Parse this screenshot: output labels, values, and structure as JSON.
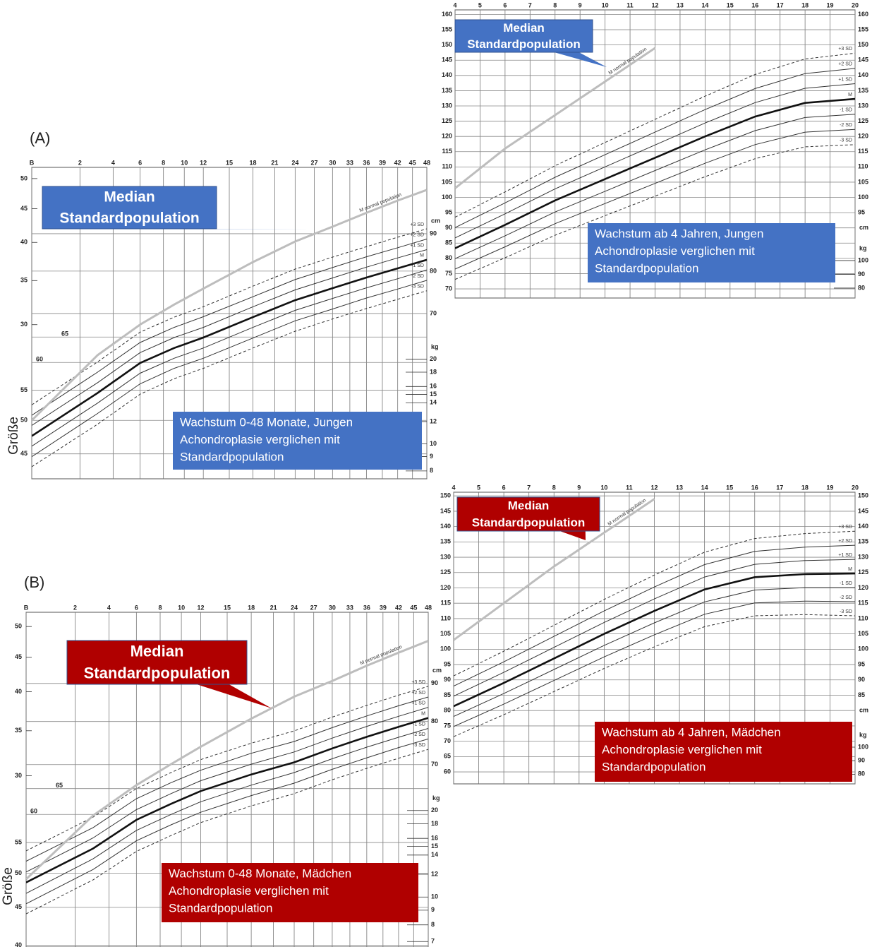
{
  "panels": [
    "(A)",
    "(B)"
  ],
  "chart_data": [
    {
      "type": "line",
      "title": [
        "Wachstum 0-48 Monate, Jungen",
        "Achondroplasie verglichen mit",
        "Standardpopulation"
      ],
      "annotation": [
        "Median",
        "Standardpopulation"
      ],
      "box_color": "#4472c4",
      "ylabel": "Größe",
      "x_scale": "sqrt",
      "log_y": true,
      "grid": true,
      "x": [
        0,
        3,
        6,
        9,
        12,
        18,
        24,
        30,
        36,
        42,
        48
      ],
      "xlim": [
        0,
        48
      ],
      "xticks": [
        {
          "value": 0,
          "label": "B"
        },
        2,
        4,
        6,
        8,
        10,
        12,
        15,
        18,
        21,
        24,
        27,
        30,
        33,
        36,
        39,
        42,
        45,
        48
      ],
      "ylim": [
        41.6,
        110.9
      ],
      "yticks": [
        45,
        50,
        55,
        60,
        65,
        70,
        80,
        90
      ],
      "y_unit": "cm",
      "y2lim": [
        7.5,
        96.7
      ],
      "y2ticks": [
        8,
        9,
        10,
        12,
        14,
        15,
        16,
        18,
        20
      ],
      "y2_unit": "kg",
      "y3lim": [
        17.5,
        52.0
      ],
      "y3ticks": [
        30,
        35,
        40,
        45,
        50
      ],
      "series": [
        {
          "name": "+3 SD",
          "color": "#333333",
          "dashed": true,
          "values": [
            52.5,
            60.1,
            66.0,
            69.2,
            71.5,
            76.3,
            80.5,
            83.6,
            86.4,
            89.0,
            91.4
          ]
        },
        {
          "name": "+2 SD",
          "color": "#333333",
          "values": [
            50.8,
            58.2,
            63.9,
            67.0,
            69.3,
            73.8,
            77.9,
            80.9,
            83.7,
            86.1,
            88.5
          ]
        },
        {
          "name": "+1 SD",
          "color": "#333333",
          "values": [
            49.2,
            56.3,
            61.9,
            64.9,
            67.0,
            71.5,
            75.4,
            78.3,
            81.0,
            83.4,
            85.6
          ]
        },
        {
          "name": "M",
          "color": "#111111",
          "bold": true,
          "values": [
            47.6,
            54.5,
            59.9,
            62.8,
            64.9,
            69.2,
            73.0,
            75.8,
            78.4,
            80.7,
            82.9
          ]
        },
        {
          "name": "-1 SD",
          "color": "#333333",
          "values": [
            46.1,
            52.8,
            58.0,
            60.8,
            62.8,
            67.0,
            70.7,
            73.4,
            75.9,
            78.1,
            80.3
          ]
        },
        {
          "name": "-2 SD",
          "color": "#333333",
          "values": [
            44.6,
            51.1,
            56.1,
            58.9,
            60.8,
            64.8,
            68.4,
            71.0,
            73.5,
            75.6,
            77.7
          ]
        },
        {
          "name": "-3 SD",
          "color": "#333333",
          "dashed": true,
          "values": [
            43.2,
            49.4,
            54.3,
            57.0,
            58.9,
            62.8,
            66.2,
            68.8,
            71.1,
            73.2,
            75.2
          ]
        },
        {
          "name": "M normal population",
          "color": "#bdbdbd",
          "bold": true,
          "label_along_line": true,
          "values": [
            50.0,
            61.4,
            67.6,
            72.0,
            75.7,
            82.3,
            87.8,
            92.0,
            96.1,
            99.9,
            103.3
          ]
        }
      ]
    },
    {
      "type": "line",
      "title": [
        "Wachstum ab 4 Jahren, Jungen",
        "Achondroplasie verglichen mit",
        "Standardpopulation"
      ],
      "annotation": [
        "Median",
        "Standardpopulation"
      ],
      "box_color": "#4472c4",
      "grid": true,
      "x": [
        4,
        6,
        8,
        10,
        12,
        14,
        16,
        18,
        20
      ],
      "xlim": [
        4,
        20
      ],
      "xticks": [
        4,
        5,
        6,
        7,
        8,
        9,
        10,
        11,
        12,
        13,
        14,
        15,
        16,
        17,
        18,
        19,
        20
      ],
      "ylim": [
        67,
        161.5
      ],
      "yticks": [
        70,
        75,
        80,
        85,
        90,
        95,
        100,
        105,
        110,
        115,
        120,
        125,
        130,
        135,
        140,
        145,
        150,
        155,
        160
      ],
      "y_unit": "cm",
      "y2lim": [
        72.8,
        282
      ],
      "y2ticks": [
        80,
        90,
        100
      ],
      "y2_unit": "kg",
      "series": [
        {
          "name": "+3 SD",
          "color": "#333333",
          "dashed": true,
          "values": [
            93.5,
            101.8,
            110.4,
            118,
            125.6,
            133.2,
            140.3,
            145.4,
            147.3
          ]
        },
        {
          "name": "+2 SD",
          "color": "#333333",
          "values": [
            90.1,
            98.2,
            106.6,
            114,
            121.4,
            128.8,
            135.7,
            140.6,
            142.3
          ]
        },
        {
          "name": "+1 SD",
          "color": "#333333",
          "values": [
            86.7,
            94.6,
            102.8,
            110,
            117.2,
            124.4,
            131.1,
            135.8,
            137.3
          ]
        },
        {
          "name": "M",
          "color": "#111111",
          "bold": true,
          "values": [
            83.3,
            91,
            99,
            106,
            113,
            120,
            126.5,
            131,
            132.3
          ]
        },
        {
          "name": "-1 SD",
          "color": "#333333",
          "values": [
            79.9,
            87.4,
            95.2,
            102,
            108.8,
            115.6,
            121.9,
            126.2,
            127.3
          ]
        },
        {
          "name": "-2 SD",
          "color": "#333333",
          "values": [
            76.5,
            83.8,
            91.4,
            98,
            104.6,
            111.2,
            117.3,
            121.4,
            122.3
          ]
        },
        {
          "name": "-3 SD",
          "color": "#333333",
          "dashed": true,
          "values": [
            73.1,
            80.2,
            87.6,
            94,
            100.4,
            106.8,
            112.7,
            116.6,
            117.3
          ]
        },
        {
          "name": "M normal population",
          "color": "#bdbdbd",
          "bold": true,
          "label_along_line": true,
          "values": [
            103,
            116,
            127,
            138,
            149,
            null,
            null,
            null,
            null
          ]
        }
      ]
    },
    {
      "type": "line",
      "title": [
        "Wachstum ab 4 Jahren, Mädchen",
        "Achondroplasie verglichen mit",
        "Standardpopulation"
      ],
      "annotation": [
        "Median",
        "Standardpopulation"
      ],
      "box_color": "#b00000",
      "grid": true,
      "x": [
        4,
        6,
        8,
        10,
        12,
        14,
        16,
        18,
        20
      ],
      "xlim": [
        4,
        20
      ],
      "xticks": [
        4,
        5,
        6,
        7,
        8,
        9,
        10,
        11,
        12,
        13,
        14,
        15,
        16,
        17,
        18,
        19,
        20
      ],
      "ylim": [
        56.1,
        151.2
      ],
      "yticks": [
        60,
        65,
        70,
        75,
        80,
        85,
        90,
        95,
        100,
        105,
        110,
        115,
        120,
        125,
        130,
        135,
        140,
        145,
        150
      ],
      "y_unit": "cm",
      "y2lim": [
        72.9,
        288
      ],
      "y2ticks": [
        80,
        90,
        100
      ],
      "y2_unit": "kg",
      "series": [
        {
          "name": "+3 SD",
          "color": "#333333",
          "dashed": true,
          "values": [
            91.3,
            99.35,
            107.8,
            116.25,
            124.2,
            131.65,
            136.1,
            137.7,
            138.5
          ]
        },
        {
          "name": "+2 SD",
          "color": "#333333",
          "values": [
            88,
            95.9,
            104.2,
            112.5,
            120.3,
            127.6,
            131.9,
            133.3,
            133.9
          ]
        },
        {
          "name": "+1 SD",
          "color": "#333333",
          "values": [
            84.7,
            92.45,
            100.6,
            108.75,
            116.4,
            123.55,
            127.7,
            128.9,
            129.3
          ]
        },
        {
          "name": "M",
          "color": "#111111",
          "bold": true,
          "values": [
            81.4,
            89,
            97,
            105,
            112.5,
            119.5,
            123.5,
            124.5,
            124.7
          ]
        },
        {
          "name": "-1 SD",
          "color": "#333333",
          "values": [
            78.1,
            85.55,
            93.4,
            101.25,
            108.6,
            115.45,
            119.3,
            120.1,
            120.1
          ]
        },
        {
          "name": "-2 SD",
          "color": "#333333",
          "values": [
            74.8,
            82.1,
            89.8,
            97.5,
            104.7,
            111.4,
            115.1,
            115.7,
            115.5
          ]
        },
        {
          "name": "-3 SD",
          "color": "#333333",
          "dashed": true,
          "values": [
            71.5,
            78.65,
            86.2,
            93.75,
            100.8,
            107.35,
            110.9,
            111.3,
            110.9
          ]
        },
        {
          "name": "M normal population",
          "color": "#bdbdbd",
          "bold": true,
          "label_along_line": true,
          "values": [
            103,
            115,
            127,
            138,
            149,
            null,
            null,
            null,
            null
          ]
        }
      ]
    },
    {
      "type": "line",
      "title": [
        "Wachstum 0-48 Monate, Mädchen",
        "Achondroplasie verglichen mit",
        "Standardpopulation"
      ],
      "annotation": [
        "Median",
        "Standardpopulation"
      ],
      "box_color": "#b00000",
      "ylabel": "Größe",
      "x_scale": "sqrt",
      "log_y": true,
      "grid": true,
      "x": [
        0,
        3,
        6,
        9,
        12,
        18,
        24,
        30,
        36,
        42,
        48
      ],
      "xlim": [
        0,
        48
      ],
      "xticks": [
        {
          "value": 0,
          "label": "B"
        },
        2,
        4,
        6,
        8,
        10,
        12,
        15,
        18,
        21,
        24,
        27,
        30,
        33,
        36,
        39,
        42,
        45,
        48
      ],
      "ylim": [
        39.8,
        112.2
      ],
      "yticks": [
        40,
        45,
        50,
        55,
        60,
        65,
        70,
        80,
        90
      ],
      "y_unit": "cm",
      "y2lim": [
        6.7,
        98.0
      ],
      "y2ticks": [
        7,
        8,
        9,
        10,
        12,
        14,
        15,
        16,
        18,
        20
      ],
      "y2_unit": "kg",
      "y3lim": [
        16.7,
        52.5
      ],
      "y3ticks": [
        30,
        35,
        40,
        45,
        50
      ],
      "series": [
        {
          "name": "+3 SD",
          "color": "#333333",
          "dashed": true,
          "values": [
            53.6,
            59.5,
            65.0,
            68.3,
            71.1,
            74.8,
            77.7,
            81.1,
            84.1,
            86.8,
            89.2
          ]
        },
        {
          "name": "+2 SD",
          "color": "#333333",
          "values": [
            51.9,
            57.6,
            63.0,
            66.2,
            68.8,
            72.5,
            75.2,
            78.5,
            81.4,
            84.0,
            86.3
          ]
        },
        {
          "name": "+1 SD",
          "color": "#333333",
          "values": [
            50.2,
            55.8,
            60.9,
            64.0,
            66.6,
            70.1,
            72.8,
            76.0,
            78.8,
            81.3,
            83.6
          ]
        },
        {
          "name": "M",
          "color": "#111111",
          "bold": true,
          "values": [
            48.6,
            54.0,
            59.0,
            62.0,
            64.5,
            67.9,
            70.5,
            73.6,
            76.3,
            78.7,
            80.9
          ]
        },
        {
          "name": "-1 SD",
          "color": "#333333",
          "values": [
            47.0,
            52.3,
            57.1,
            60.0,
            62.4,
            65.7,
            68.3,
            71.3,
            73.9,
            76.2,
            78.3
          ]
        },
        {
          "name": "-2 SD",
          "color": "#333333",
          "values": [
            45.5,
            50.6,
            55.3,
            58.1,
            60.4,
            63.6,
            66.1,
            69.0,
            71.5,
            73.8,
            75.8
          ]
        },
        {
          "name": "-3 SD",
          "color": "#333333",
          "dashed": true,
          "values": [
            44.1,
            49.0,
            53.5,
            56.2,
            58.5,
            61.6,
            64.0,
            66.8,
            69.2,
            71.4,
            73.4
          ]
        },
        {
          "name": "M normal population",
          "color": "#bdbdbd",
          "bold": true,
          "label_along_line": true,
          "values": [
            49.1,
            59.8,
            65.7,
            70.1,
            74.0,
            80.7,
            86.4,
            90.7,
            95.1,
            99.0,
            102.7
          ]
        }
      ]
    }
  ]
}
